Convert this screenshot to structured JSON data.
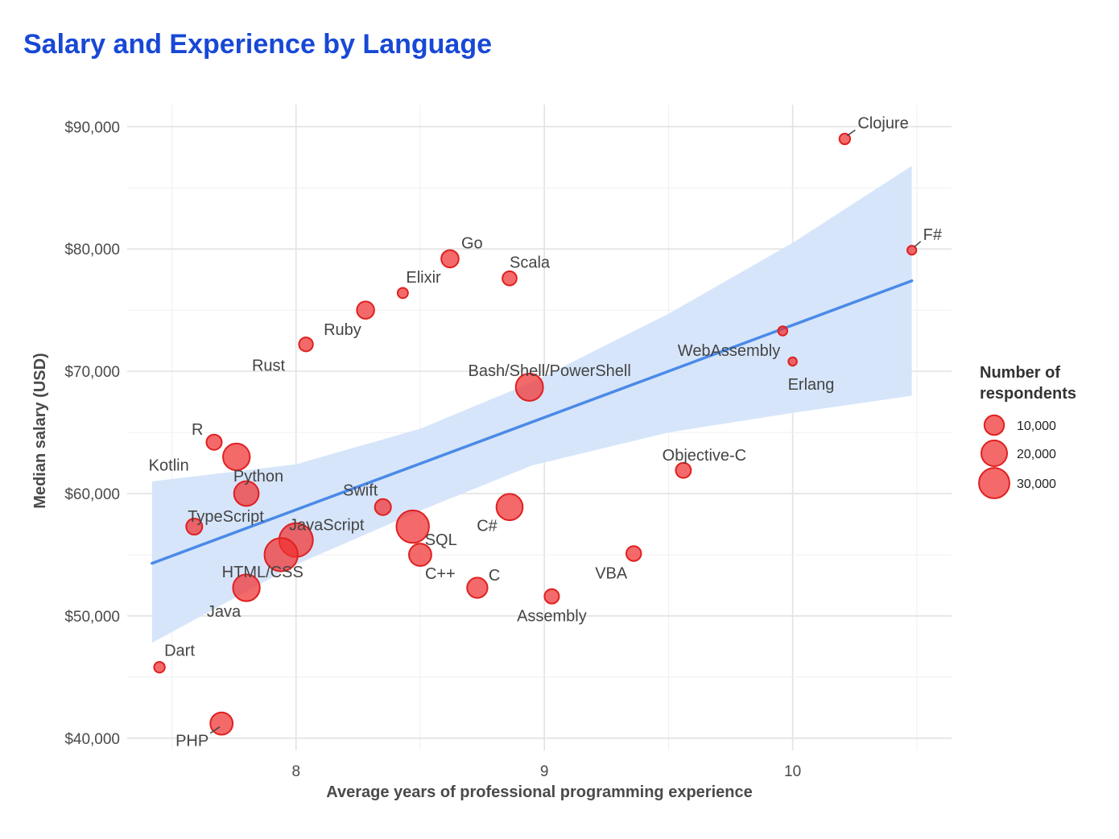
{
  "chart_data": {
    "type": "scatter",
    "title": "Salary and Experience by Language",
    "xlabel": "Average years of professional programming experience",
    "ylabel": "Median salary (USD)",
    "xlim": [
      7.32,
      10.64
    ],
    "ylim": [
      39000,
      91800
    ],
    "x_ticks": [
      8,
      9,
      10
    ],
    "y_ticks": [
      40000,
      50000,
      60000,
      70000,
      80000,
      90000
    ],
    "y_tick_labels": [
      "$40,000",
      "$50,000",
      "$60,000",
      "$70,000",
      "$80,000",
      "$90,000"
    ],
    "grid": true,
    "marker_color": "#f03030",
    "trend": {
      "x": [
        7.42,
        10.48
      ],
      "y": [
        54300,
        77400
      ],
      "color": "#4a8ae8",
      "band_color": "#d4e4fa",
      "band": [
        {
          "x": 7.42,
          "lower": 47800,
          "upper": 61000
        },
        {
          "x": 8.0,
          "lower": 54200,
          "upper": 62400
        },
        {
          "x": 8.5,
          "lower": 58600,
          "upper": 65300
        },
        {
          "x": 8.95,
          "lower": 62300,
          "upper": 69100
        },
        {
          "x": 9.5,
          "lower": 65000,
          "upper": 74700
        },
        {
          "x": 10.0,
          "lower": 66600,
          "upper": 80500
        },
        {
          "x": 10.48,
          "lower": 68000,
          "upper": 86800
        }
      ]
    },
    "points": [
      {
        "label": "Clojure",
        "x": 10.21,
        "y": 89000,
        "n": 1600
      },
      {
        "label": "F#",
        "x": 10.48,
        "y": 79900,
        "n": 800
      },
      {
        "label": "Go",
        "x": 8.62,
        "y": 79200,
        "n": 7200
      },
      {
        "label": "Scala",
        "x": 8.86,
        "y": 77600,
        "n": 4000
      },
      {
        "label": "Elixir",
        "x": 8.43,
        "y": 76400,
        "n": 1400
      },
      {
        "label": "Ruby",
        "x": 8.28,
        "y": 75000,
        "n": 7100
      },
      {
        "label": "Rust",
        "x": 8.04,
        "y": 72200,
        "n": 3800
      },
      {
        "label": "WebAssembly",
        "x": 9.96,
        "y": 73300,
        "n": 900
      },
      {
        "label": "Erlang",
        "x": 10.0,
        "y": 70800,
        "n": 600
      },
      {
        "label": "Bash/Shell/PowerShell",
        "x": 8.94,
        "y": 68700,
        "n": 23000
      },
      {
        "label": "R",
        "x": 7.67,
        "y": 64200,
        "n": 5000
      },
      {
        "label": "Python",
        "x": 7.8,
        "y": 60000,
        "n": 18000
      },
      {
        "label": "Objective-C",
        "x": 9.56,
        "y": 61900,
        "n": 4900
      },
      {
        "label": "Swift",
        "x": 8.35,
        "y": 58900,
        "n": 5800
      },
      {
        "label": "C#",
        "x": 8.86,
        "y": 58900,
        "n": 21000
      },
      {
        "label": "TypeScript",
        "x": 7.59,
        "y": 57300,
        "n": 5800
      },
      {
        "label": "JavaScript",
        "x": 8.0,
        "y": 56200,
        "n": 38000
      },
      {
        "label": "SQL",
        "x": 8.47,
        "y": 57300,
        "n": 35000
      },
      {
        "label": "Kotlin",
        "x": 7.76,
        "y": 63000,
        "n": 22000
      },
      {
        "label": "HTML/CSS",
        "x": 7.94,
        "y": 55000,
        "n": 37000
      },
      {
        "label": "C++",
        "x": 8.5,
        "y": 55000,
        "n": 14000
      },
      {
        "label": "VBA",
        "x": 9.36,
        "y": 55100,
        "n": 4600
      },
      {
        "label": "Java",
        "x": 7.8,
        "y": 52300,
        "n": 22000
      },
      {
        "label": "C",
        "x": 8.73,
        "y": 52300,
        "n": 11000
      },
      {
        "label": "Assembly",
        "x": 9.03,
        "y": 51600,
        "n": 4300
      },
      {
        "label": "Dart",
        "x": 7.45,
        "y": 45800,
        "n": 1600
      },
      {
        "label": "PHP",
        "x": 7.7,
        "y": 41200,
        "n": 14000
      }
    ],
    "legend": {
      "title_line1": "Number of",
      "title_line2": "respondents",
      "entries": [
        {
          "label": "10,000",
          "n": 10000
        },
        {
          "label": "20,000",
          "n": 20000
        },
        {
          "label": "30,000",
          "n": 30000
        }
      ]
    }
  }
}
